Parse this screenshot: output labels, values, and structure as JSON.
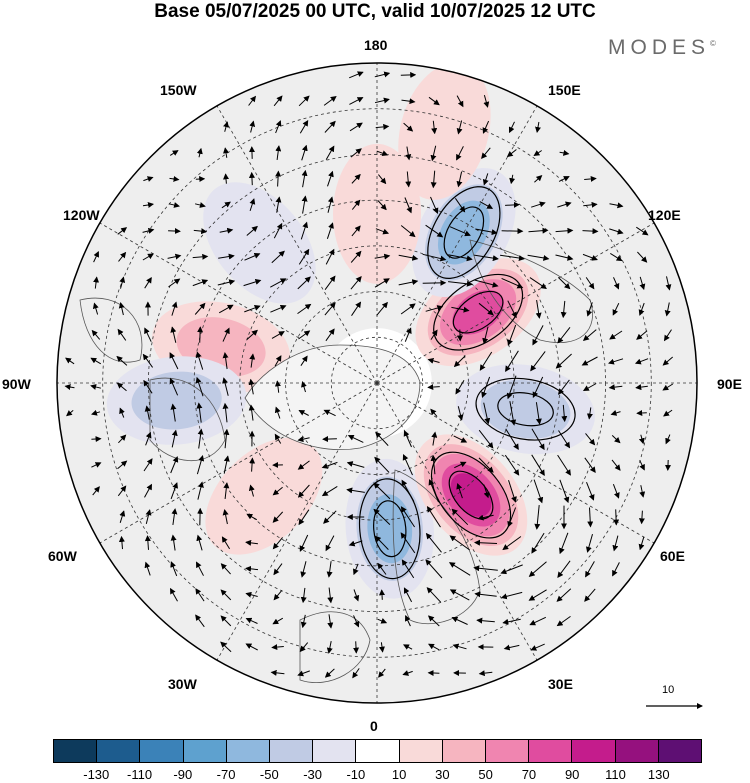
{
  "title": "Base 05/07/2025 00 UTC, valid 10/07/2025 12 UTC",
  "logo": {
    "text": "MODES",
    "mark": "©"
  },
  "longitude_labels": {
    "top": "180",
    "bottom": "0",
    "left": "90W",
    "right": "90E",
    "ul1": "150W",
    "ul2": "120W",
    "ur1": "150E",
    "ur2": "120E",
    "ll1": "60W",
    "ll2": "30W",
    "lr1": "60E",
    "lr2": "30E"
  },
  "vector_scale": {
    "value": "10"
  },
  "colorbar": {
    "colors": [
      "#0d3a5c",
      "#1d5c8e",
      "#3b82b8",
      "#5ea1cf",
      "#8fb8de",
      "#c0cbe4",
      "#e3e3f0",
      "#ffffff",
      "#f9dad9",
      "#f6b5c0",
      "#f085b0",
      "#e04c9f",
      "#c41c8c",
      "#95117e",
      "#5e0f73"
    ],
    "labels": [
      "-130",
      "-110",
      "-90",
      "-70",
      "-50",
      "-30",
      "-10",
      "10",
      "30",
      "50",
      "70",
      "90",
      "110",
      "130"
    ]
  },
  "field": {
    "anomalies": [
      {
        "lon": 5,
        "lat": 58,
        "value": -60
      },
      {
        "lon": 40,
        "lat": 58,
        "value": 105
      },
      {
        "lon": 80,
        "lat": 57,
        "value": -55
      },
      {
        "lon": 125,
        "lat": 63,
        "value": 90
      },
      {
        "lon": 150,
        "lat": 52,
        "value": -70
      },
      {
        "lon": 180,
        "lat": 53,
        "value": 35
      },
      {
        "lon": -140,
        "lat": 50,
        "value": -30
      },
      {
        "lon": -103,
        "lat": 55,
        "value": 40
      },
      {
        "lon": -85,
        "lat": 46,
        "value": -40
      },
      {
        "lon": -45,
        "lat": 55,
        "value": 30
      },
      {
        "lon": 165,
        "lat": 33,
        "value": 20
      },
      {
        "lon": 110,
        "lat": 30,
        "value": 15
      },
      {
        "lon": -20,
        "lat": 30,
        "value": 15
      }
    ]
  }
}
